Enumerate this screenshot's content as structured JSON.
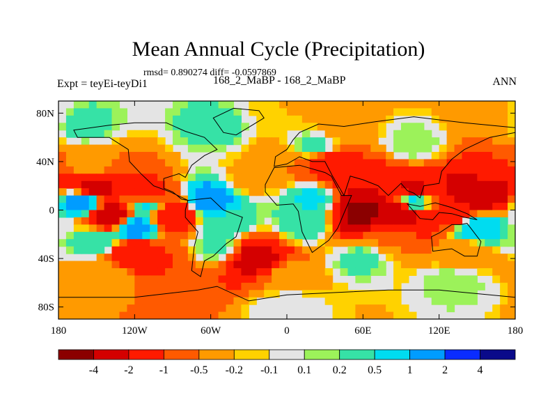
{
  "chart_data": {
    "type": "heatmap",
    "title": "Mean Annual Cycle (Precipitation)",
    "stats_line": "rmsd= 0.890274  diff= -0.0597869",
    "left_label": "Expt = teyEi-teyDi1",
    "center_label": "168_2_MaBP - 168_2_MaBP",
    "right_label": "ANN",
    "x_axis": {
      "range": [
        -180,
        180
      ],
      "ticks": [
        -180,
        -120,
        -60,
        0,
        60,
        120,
        180
      ],
      "tick_labels": [
        "180",
        "120W",
        "60W",
        "0",
        "60E",
        "120E",
        "180"
      ]
    },
    "y_axis": {
      "range": [
        -90,
        90
      ],
      "ticks": [
        80,
        40,
        0,
        -40,
        -80
      ],
      "tick_labels": [
        "80N",
        "40N",
        "0",
        "40S",
        "80S"
      ]
    },
    "colorbar": {
      "levels": [
        "-4",
        "-2",
        "-1",
        "-0.5",
        "-0.2",
        "-0.1",
        "0.1",
        "0.2",
        "0.5",
        "1",
        "2",
        "4"
      ],
      "colors": [
        "#8b0000",
        "#d40000",
        "#ff1a00",
        "#ff5a00",
        "#ff9a00",
        "#ffd200",
        "#e4e4e4",
        "#9cf25a",
        "#36e2a6",
        "#00dcf0",
        "#009cff",
        "#0a2cff",
        "#0a0a8a"
      ]
    },
    "regions": [
      {
        "lon": -150,
        "lat": 18,
        "value": -2.5
      },
      {
        "lon": -110,
        "lat": 12,
        "value": -1.5
      },
      {
        "lon": -160,
        "lat": 6,
        "value": 1.5
      },
      {
        "lon": -110,
        "lat": 5,
        "value": 0.7
      },
      {
        "lon": -140,
        "lat": -5,
        "value": -3
      },
      {
        "lon": -90,
        "lat": -4,
        "value": -2
      },
      {
        "lon": -120,
        "lat": -15,
        "value": 1.5
      },
      {
        "lon": -150,
        "lat": -25,
        "value": 0.5
      },
      {
        "lon": -120,
        "lat": -35,
        "value": -2
      },
      {
        "lon": -100,
        "lat": -42,
        "value": -1
      },
      {
        "lon": -155,
        "lat": 38,
        "value": -0.3
      },
      {
        "lon": -60,
        "lat": 8,
        "value": 1.5
      },
      {
        "lon": -50,
        "lat": -10,
        "value": 0.4
      },
      {
        "lon": -55,
        "lat": -30,
        "value": 0.3
      },
      {
        "lon": -25,
        "lat": -40,
        "value": -2.5
      },
      {
        "lon": -30,
        "lat": 25,
        "value": -0.3
      },
      {
        "lon": 0,
        "lat": 40,
        "value": -0.5
      },
      {
        "lon": 20,
        "lat": 52,
        "value": 0.3
      },
      {
        "lon": 30,
        "lat": 38,
        "value": -1.5
      },
      {
        "lon": 60,
        "lat": 20,
        "value": -2
      },
      {
        "lon": 100,
        "lat": 15,
        "value": -2.5
      },
      {
        "lon": 150,
        "lat": 15,
        "value": -4
      },
      {
        "lon": 160,
        "lat": 35,
        "value": -1
      },
      {
        "lon": 20,
        "lat": 8,
        "value": 0.6
      },
      {
        "lon": 15,
        "lat": -10,
        "value": 0.4
      },
      {
        "lon": 60,
        "lat": -2,
        "value": -4.5
      },
      {
        "lon": 90,
        "lat": -3,
        "value": -3
      },
      {
        "lon": 130,
        "lat": -2,
        "value": -1.5
      },
      {
        "lon": 150,
        "lat": -15,
        "value": 1
      },
      {
        "lon": 100,
        "lat": 8,
        "value": 1.2
      },
      {
        "lon": 80,
        "lat": -25,
        "value": -0.5
      },
      {
        "lon": 140,
        "lat": -35,
        "value": -0.5
      },
      {
        "lon": 60,
        "lat": -40,
        "value": 0.3
      },
      {
        "lon": 0,
        "lat": -55,
        "value": -0.3
      },
      {
        "lon": -140,
        "lat": -55,
        "value": -0.3
      },
      {
        "lon": -60,
        "lat": 68,
        "value": 0.3
      },
      {
        "lon": 100,
        "lat": 55,
        "value": 0.2
      },
      {
        "lon": 0,
        "lat": 85,
        "value": -0.2
      },
      {
        "lon": 160,
        "lat": 75,
        "value": -0.3
      },
      {
        "lon": -160,
        "lat": 70,
        "value": 0.3
      },
      {
        "lon": 40,
        "lat": 72,
        "value": -0.3
      },
      {
        "lon": 130,
        "lat": -60,
        "value": 0.2
      },
      {
        "lon": 0,
        "lat": -80,
        "value": 0.05
      }
    ],
    "continents": [
      {
        "name": "North America",
        "points": [
          [
            -168,
            66
          ],
          [
            -140,
            70
          ],
          [
            -120,
            72
          ],
          [
            -95,
            72
          ],
          [
            -80,
            65
          ],
          [
            -65,
            60
          ],
          [
            -55,
            50
          ],
          [
            -65,
            45
          ],
          [
            -75,
            37
          ],
          [
            -80,
            27
          ],
          [
            -85,
            30
          ],
          [
            -97,
            26
          ],
          [
            -97,
            18
          ],
          [
            -90,
            15
          ],
          [
            -83,
            9
          ],
          [
            -78,
            8
          ],
          [
            -92,
            15
          ],
          [
            -105,
            20
          ],
          [
            -115,
            30
          ],
          [
            -124,
            40
          ],
          [
            -125,
            50
          ],
          [
            -140,
            60
          ],
          [
            -165,
            60
          ]
        ]
      },
      {
        "name": "Greenland",
        "points": [
          [
            -58,
            76
          ],
          [
            -42,
            84
          ],
          [
            -22,
            82
          ],
          [
            -18,
            76
          ],
          [
            -40,
            62
          ],
          [
            -50,
            64
          ]
        ]
      },
      {
        "name": "South America",
        "points": [
          [
            -78,
            8
          ],
          [
            -60,
            10
          ],
          [
            -50,
            0
          ],
          [
            -35,
            -6
          ],
          [
            -40,
            -22
          ],
          [
            -48,
            -28
          ],
          [
            -58,
            -38
          ],
          [
            -65,
            -42
          ],
          [
            -68,
            -55
          ],
          [
            -75,
            -50
          ],
          [
            -73,
            -30
          ],
          [
            -70,
            -18
          ],
          [
            -80,
            -6
          ],
          [
            -80,
            0
          ]
        ]
      },
      {
        "name": "Africa",
        "points": [
          [
            -17,
            21
          ],
          [
            -10,
            35
          ],
          [
            10,
            37
          ],
          [
            30,
            31
          ],
          [
            35,
            28
          ],
          [
            43,
            12
          ],
          [
            51,
            12
          ],
          [
            40,
            -15
          ],
          [
            33,
            -25
          ],
          [
            20,
            -35
          ],
          [
            12,
            -18
          ],
          [
            9,
            -1
          ],
          [
            5,
            5
          ],
          [
            -8,
            4
          ],
          [
            -17,
            15
          ]
        ]
      },
      {
        "name": "Eurasia",
        "points": [
          [
            -10,
            36
          ],
          [
            -9,
            44
          ],
          [
            0,
            50
          ],
          [
            5,
            58
          ],
          [
            10,
            64
          ],
          [
            25,
            71
          ],
          [
            45,
            69
          ],
          [
            70,
            73
          ],
          [
            100,
            77
          ],
          [
            140,
            72
          ],
          [
            180,
            68
          ],
          [
            180,
            64
          ],
          [
            160,
            60
          ],
          [
            140,
            50
          ],
          [
            130,
            42
          ],
          [
            122,
            32
          ],
          [
            120,
            22
          ],
          [
            108,
            20
          ],
          [
            105,
            10
          ],
          [
            100,
            14
          ],
          [
            95,
            16
          ],
          [
            90,
            22
          ],
          [
            80,
            12
          ],
          [
            72,
            20
          ],
          [
            60,
            25
          ],
          [
            50,
            28
          ],
          [
            45,
            12
          ],
          [
            36,
            28
          ],
          [
            30,
            40
          ],
          [
            20,
            40
          ],
          [
            10,
            44
          ],
          [
            0,
            38
          ]
        ]
      },
      {
        "name": "Australia",
        "points": [
          [
            114,
            -22
          ],
          [
            120,
            -19
          ],
          [
            130,
            -12
          ],
          [
            137,
            -12
          ],
          [
            142,
            -11
          ],
          [
            145,
            -15
          ],
          [
            153,
            -26
          ],
          [
            150,
            -38
          ],
          [
            140,
            -38
          ],
          [
            130,
            -32
          ],
          [
            115,
            -34
          ]
        ]
      },
      {
        "name": "Maritime",
        "points": [
          [
            95,
            5
          ],
          [
            105,
            -7
          ],
          [
            115,
            -8
          ],
          [
            120,
            -2
          ],
          [
            130,
            -3
          ],
          [
            140,
            -6
          ],
          [
            150,
            -8
          ],
          [
            142,
            -3
          ],
          [
            130,
            2
          ],
          [
            117,
            6
          ],
          [
            105,
            3
          ]
        ]
      },
      {
        "name": "Antarctica",
        "points": [
          [
            -180,
            -72
          ],
          [
            -120,
            -72
          ],
          [
            -70,
            -66
          ],
          [
            -55,
            -63
          ],
          [
            -30,
            -75
          ],
          [
            0,
            -70
          ],
          [
            40,
            -68
          ],
          [
            80,
            -66
          ],
          [
            120,
            -66
          ],
          [
            160,
            -70
          ],
          [
            180,
            -72
          ],
          [
            180,
            -90
          ],
          [
            -180,
            -90
          ]
        ]
      }
    ]
  }
}
